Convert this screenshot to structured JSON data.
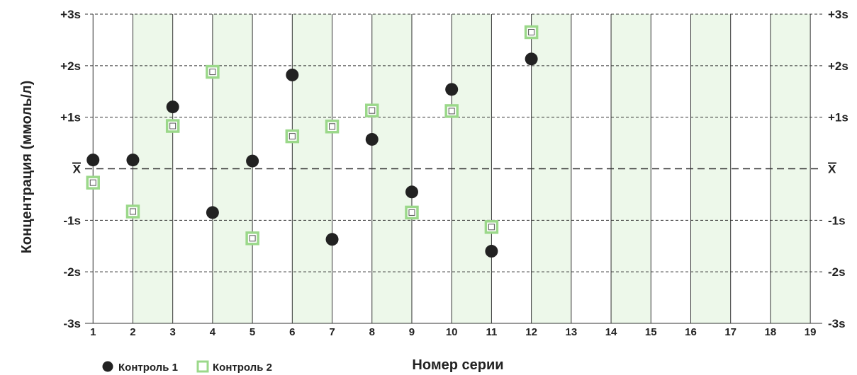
{
  "chart_data": {
    "type": "scatter",
    "ylabel": "Концентрация (ммоль/л)",
    "xlabel": "Номер серии",
    "x_ticks": [
      "1",
      "2",
      "3",
      "4",
      "5",
      "6",
      "7",
      "8",
      "9",
      "10",
      "11",
      "12",
      "13",
      "14",
      "15",
      "16",
      "17",
      "18",
      "19"
    ],
    "y_ticks": [
      {
        "v": 3,
        "label": "+3s"
      },
      {
        "v": 2,
        "label": "+2s"
      },
      {
        "v": 1,
        "label": "+1s"
      },
      {
        "v": 0,
        "label": "X"
      },
      {
        "v": -1,
        "label": "-1s"
      },
      {
        "v": -2,
        "label": "-2s"
      },
      {
        "v": -3,
        "label": "-3s"
      }
    ],
    "xlim": [
      0.8,
      19.3
    ],
    "ylim": [
      -3,
      3
    ],
    "grid": true,
    "legend_position": "bottom-left",
    "series": [
      {
        "name": "Контроль 1",
        "marker": "circle",
        "color": "#222222",
        "points": [
          {
            "x": 1,
            "y": 0.17
          },
          {
            "x": 2,
            "y": 0.17
          },
          {
            "x": 3,
            "y": 1.2
          },
          {
            "x": 4,
            "y": -0.85
          },
          {
            "x": 5,
            "y": 0.15
          },
          {
            "x": 6,
            "y": 1.82
          },
          {
            "x": 7,
            "y": -1.37
          },
          {
            "x": 8,
            "y": 0.57
          },
          {
            "x": 9,
            "y": -0.45
          },
          {
            "x": 10,
            "y": 1.54
          },
          {
            "x": 11,
            "y": -1.6
          },
          {
            "x": 12,
            "y": 2.13
          }
        ]
      },
      {
        "name": "Контроль 2",
        "marker": "square",
        "color": "#9bd88a",
        "points": [
          {
            "x": 1,
            "y": -0.27
          },
          {
            "x": 2,
            "y": -0.83
          },
          {
            "x": 3,
            "y": 0.83
          },
          {
            "x": 4,
            "y": 1.88
          },
          {
            "x": 5,
            "y": -1.35
          },
          {
            "x": 6,
            "y": 0.63
          },
          {
            "x": 7,
            "y": 0.82
          },
          {
            "x": 8,
            "y": 1.13
          },
          {
            "x": 9,
            "y": -0.85
          },
          {
            "x": 10,
            "y": 1.12
          },
          {
            "x": 11,
            "y": -1.13
          },
          {
            "x": 12,
            "y": 2.65
          }
        ]
      }
    ]
  }
}
